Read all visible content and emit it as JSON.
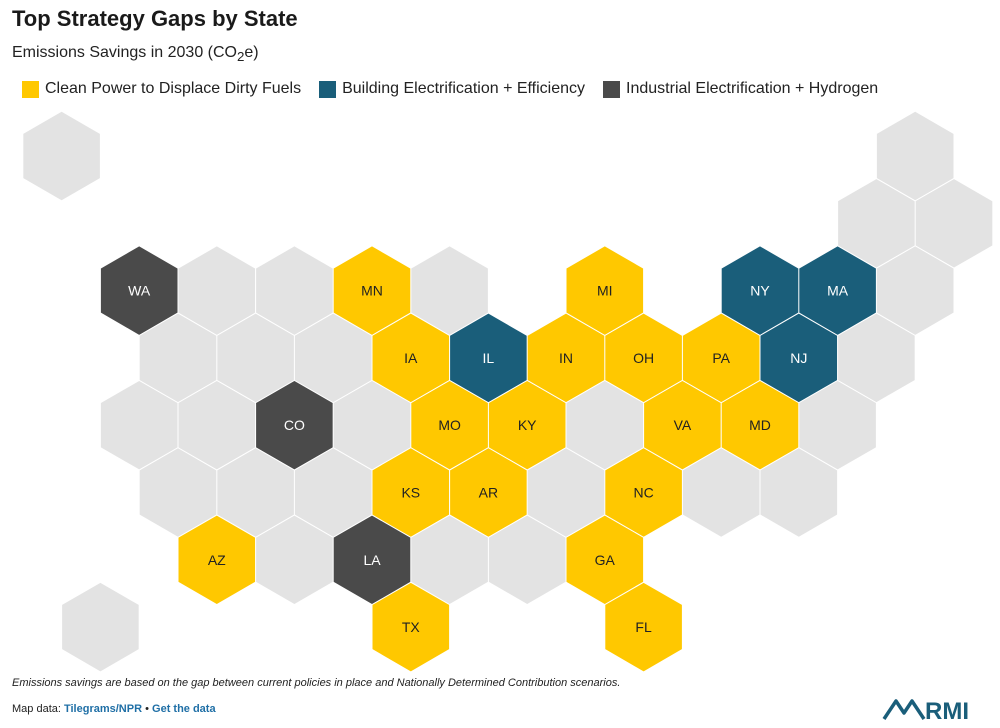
{
  "header": {
    "title": "Top Strategy Gaps by State",
    "subtitle_prefix": "Emissions Savings in 2030 (CO",
    "subtitle_sub": "2",
    "subtitle_suffix": "e)"
  },
  "legend": [
    {
      "label": "Clean Power to Displace Dirty Fuels",
      "color": "#FFC800"
    },
    {
      "label": "Building Electrification + Efficiency",
      "color": "#1A5E7A"
    },
    {
      "label": "Industrial Electrification + Hydrogen",
      "color": "#4A4A4A"
    }
  ],
  "colors": {
    "clean_power": "#FFC800",
    "building": "#1A5E7A",
    "industrial": "#4A4A4A",
    "none": "#E3E3E3",
    "label_dark": "#222222",
    "label_light": "#FFFFFF"
  },
  "map": {
    "hexes": [
      {
        "row": 0,
        "col": 0,
        "state": "",
        "category": "none"
      },
      {
        "row": 0,
        "col": 11,
        "state": "",
        "category": "none"
      },
      {
        "row": 1,
        "col": 10,
        "state": "",
        "category": "none"
      },
      {
        "row": 1,
        "col": 11,
        "state": "",
        "category": "none"
      },
      {
        "row": 2,
        "col": 1,
        "state": "WA",
        "category": "industrial"
      },
      {
        "row": 2,
        "col": 2,
        "state": "",
        "category": "none"
      },
      {
        "row": 2,
        "col": 3,
        "state": "",
        "category": "none"
      },
      {
        "row": 2,
        "col": 4,
        "state": "MN",
        "category": "clean_power"
      },
      {
        "row": 2,
        "col": 5,
        "state": "",
        "category": "none"
      },
      {
        "row": 2,
        "col": 7,
        "state": "MI",
        "category": "clean_power"
      },
      {
        "row": 2,
        "col": 9,
        "state": "NY",
        "category": "building"
      },
      {
        "row": 2,
        "col": 10,
        "state": "MA",
        "category": "building"
      },
      {
        "row": 2,
        "col": 11,
        "state": "",
        "category": "none"
      },
      {
        "row": 3,
        "col": 1,
        "state": "",
        "category": "none"
      },
      {
        "row": 3,
        "col": 2,
        "state": "",
        "category": "none"
      },
      {
        "row": 3,
        "col": 3,
        "state": "",
        "category": "none"
      },
      {
        "row": 3,
        "col": 4,
        "state": "IA",
        "category": "clean_power"
      },
      {
        "row": 3,
        "col": 5,
        "state": "IL",
        "category": "building"
      },
      {
        "row": 3,
        "col": 6,
        "state": "IN",
        "category": "clean_power"
      },
      {
        "row": 3,
        "col": 7,
        "state": "OH",
        "category": "clean_power"
      },
      {
        "row": 3,
        "col": 8,
        "state": "PA",
        "category": "clean_power"
      },
      {
        "row": 3,
        "col": 9,
        "state": "NJ",
        "category": "building"
      },
      {
        "row": 3,
        "col": 10,
        "state": "",
        "category": "none"
      },
      {
        "row": 4,
        "col": 1,
        "state": "",
        "category": "none"
      },
      {
        "row": 4,
        "col": 2,
        "state": "",
        "category": "none"
      },
      {
        "row": 4,
        "col": 3,
        "state": "CO",
        "category": "industrial"
      },
      {
        "row": 4,
        "col": 4,
        "state": "",
        "category": "none"
      },
      {
        "row": 4,
        "col": 5,
        "state": "MO",
        "category": "clean_power"
      },
      {
        "row": 4,
        "col": 6,
        "state": "KY",
        "category": "clean_power"
      },
      {
        "row": 4,
        "col": 7,
        "state": "",
        "category": "none"
      },
      {
        "row": 4,
        "col": 8,
        "state": "VA",
        "category": "clean_power"
      },
      {
        "row": 4,
        "col": 9,
        "state": "MD",
        "category": "clean_power"
      },
      {
        "row": 4,
        "col": 10,
        "state": "",
        "category": "none"
      },
      {
        "row": 5,
        "col": 1,
        "state": "",
        "category": "none"
      },
      {
        "row": 5,
        "col": 2,
        "state": "",
        "category": "none"
      },
      {
        "row": 5,
        "col": 3,
        "state": "",
        "category": "none"
      },
      {
        "row": 5,
        "col": 4,
        "state": "KS",
        "category": "clean_power"
      },
      {
        "row": 5,
        "col": 5,
        "state": "AR",
        "category": "clean_power"
      },
      {
        "row": 5,
        "col": 6,
        "state": "",
        "category": "none"
      },
      {
        "row": 5,
        "col": 7,
        "state": "NC",
        "category": "clean_power"
      },
      {
        "row": 5,
        "col": 8,
        "state": "",
        "category": "none"
      },
      {
        "row": 5,
        "col": 9,
        "state": "",
        "category": "none"
      },
      {
        "row": 6,
        "col": 2,
        "state": "AZ",
        "category": "clean_power"
      },
      {
        "row": 6,
        "col": 3,
        "state": "",
        "category": "none"
      },
      {
        "row": 6,
        "col": 4,
        "state": "LA",
        "category": "industrial"
      },
      {
        "row": 6,
        "col": 5,
        "state": "",
        "category": "none"
      },
      {
        "row": 6,
        "col": 6,
        "state": "",
        "category": "none"
      },
      {
        "row": 6,
        "col": 7,
        "state": "GA",
        "category": "clean_power"
      },
      {
        "row": 7,
        "col": 0,
        "state": "",
        "category": "none"
      },
      {
        "row": 7,
        "col": 4,
        "state": "TX",
        "category": "clean_power"
      },
      {
        "row": 7,
        "col": 7,
        "state": "FL",
        "category": "clean_power"
      }
    ]
  },
  "footer": {
    "note": "Emissions savings are based on the gap between current policies in place and Nationally Determined Contribution scenarios.",
    "map_data_label": "Map data: ",
    "source_link": "Tilegrams/NPR",
    "separator": " • ",
    "data_link": "Get the data",
    "logo_text": "RMI",
    "logo_color": "#1A5E7A"
  }
}
